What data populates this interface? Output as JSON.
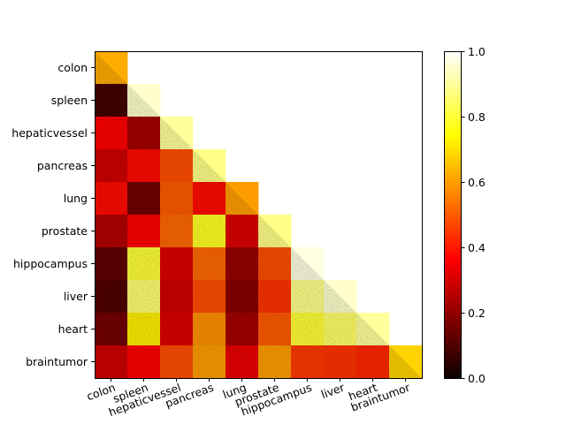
{
  "chart_data": {
    "type": "heatmap",
    "title": "",
    "xlabel": "",
    "ylabel": "",
    "categories": [
      "colon",
      "spleen",
      "hepaticvessel",
      "pancreas",
      "lung",
      "prostate",
      "hippocampus",
      "liver",
      "heart",
      "braintumor"
    ],
    "matrix": [
      [
        0.62,
        null,
        null,
        null,
        null,
        null,
        null,
        null,
        null,
        null
      ],
      [
        0.08,
        0.95,
        null,
        null,
        null,
        null,
        null,
        null,
        null,
        null
      ],
      [
        0.35,
        0.22,
        0.9,
        null,
        null,
        null,
        null,
        null,
        null,
        null
      ],
      [
        0.28,
        0.38,
        0.48,
        0.88,
        null,
        null,
        null,
        null,
        null,
        null
      ],
      [
        0.38,
        0.15,
        0.5,
        0.38,
        0.6,
        null,
        null,
        null,
        null,
        null
      ],
      [
        0.24,
        0.36,
        0.52,
        0.78,
        0.3,
        0.88,
        null,
        null,
        null,
        null
      ],
      [
        0.12,
        0.8,
        0.3,
        0.52,
        0.2,
        0.48,
        0.97,
        null,
        null,
        null
      ],
      [
        0.1,
        0.86,
        0.28,
        0.48,
        0.18,
        0.44,
        0.88,
        0.95,
        null,
        null
      ],
      [
        0.15,
        0.72,
        0.3,
        0.58,
        0.22,
        0.5,
        0.8,
        0.85,
        0.9,
        null
      ],
      [
        0.28,
        0.36,
        0.48,
        0.6,
        0.32,
        0.6,
        0.45,
        0.44,
        0.42,
        0.68
      ]
    ],
    "zlim": [
      0.0,
      1.0
    ],
    "colormap": "hot",
    "colorbar_ticks": [
      "0.0",
      "0.2",
      "0.4",
      "0.6",
      "0.8",
      "1.0"
    ],
    "grid": false,
    "legend": "colorbar-right"
  }
}
